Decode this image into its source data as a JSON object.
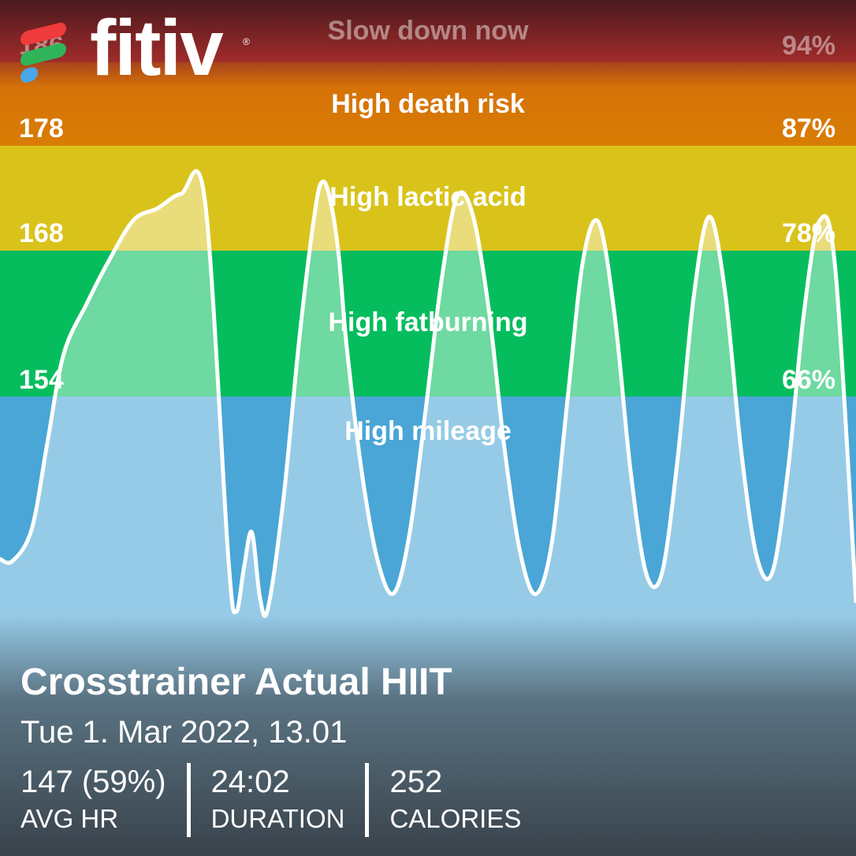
{
  "brand": {
    "name": "fitiv",
    "mark": "®",
    "colors": [
      "#ef3b3b",
      "#2fb45a",
      "#4aa6e8"
    ]
  },
  "zones": [
    {
      "id": "red",
      "label": "Slow down now",
      "bpm": "186",
      "pct": "94%",
      "color": "#a12b2a"
    },
    {
      "id": "orange",
      "label": "High death risk",
      "bpm": "178",
      "pct": "87%",
      "color": "#d87d04"
    },
    {
      "id": "yellow",
      "label": "High lactic acid",
      "bpm": "168",
      "pct": "78%",
      "color": "#d9c31b"
    },
    {
      "id": "green",
      "label": "High fatburning",
      "bpm": "154",
      "pct": "66%",
      "color": "#06bd5e"
    },
    {
      "id": "blue",
      "label": "High mileage",
      "color": "#4aa6d6"
    }
  ],
  "chart_data": {
    "type": "area",
    "x_unit": "minutes",
    "y_unit": "bpm",
    "ylim": [
      108,
      191
    ],
    "xlim": [
      0,
      24.03
    ],
    "x": [
      0,
      0.35,
      0.89,
      1.34,
      1.79,
      2.44,
      3.1,
      3.76,
      4.42,
      5.08,
      5.75,
      6.41,
      6.63,
      6.85,
      7.07,
      7.3,
      7.52,
      7.96,
      8.41,
      8.85,
      9.07,
      9.29,
      9.51,
      9.73,
      10.17,
      10.62,
      11.06,
      11.5,
      11.95,
      12.39,
      12.83,
      13.27,
      13.72,
      14.16,
      14.6,
      15.04,
      15.49,
      15.93,
      16.37,
      16.81,
      17.26,
      17.7,
      18.14,
      18.58,
      19.03,
      19.47,
      19.91,
      20.35,
      20.8,
      21.24,
      21.68,
      22.12,
      22.57,
      23.01,
      23.45,
      24.03
    ],
    "y": [
      136.8,
      136.6,
      139.7,
      148.3,
      156.7,
      161.6,
      166.0,
      169.7,
      170.8,
      172.2,
      171.6,
      136.9,
      131.7,
      136.0,
      139.4,
      133.0,
      132.0,
      142.7,
      158.4,
      170.7,
      173.4,
      171.3,
      166.2,
      157.5,
      144.9,
      136.4,
      133.5,
      139.3,
      151.3,
      163.7,
      171.9,
      170.2,
      161.0,
      147.6,
      137.5,
      133.4,
      138.3,
      152.2,
      165.8,
      169.4,
      160.3,
      145.4,
      135.4,
      135.4,
      146.7,
      162.1,
      170.0,
      162.8,
      147.5,
      137.1,
      135.5,
      145.4,
      160.7,
      169.6,
      164.9,
      132.7
    ],
    "zone_thresholds_bpm": [
      154,
      168,
      178,
      186
    ]
  },
  "workout": {
    "title": "Crosstrainer Actual HIIT",
    "date": "Tue 1. Mar 2022, 13.01"
  },
  "stats": [
    {
      "value": "147 (59%)",
      "label": "AVG HR"
    },
    {
      "value": "24:02",
      "label": "DURATION"
    },
    {
      "value": "252",
      "label": "CALORIES"
    }
  ]
}
